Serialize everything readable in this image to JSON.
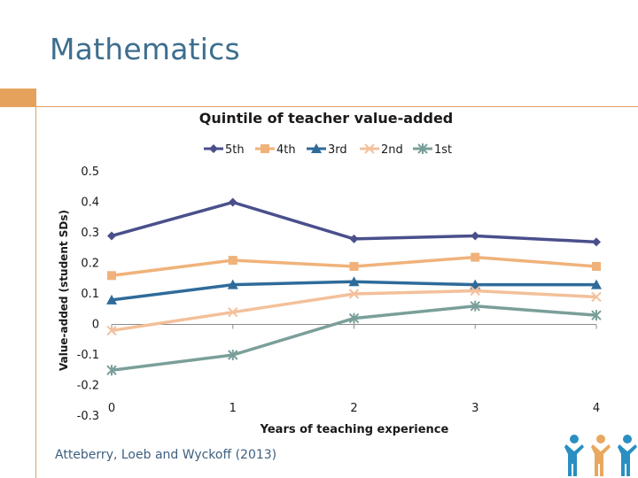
{
  "slide": {
    "title": "Mathematics",
    "source": "Atteberry, Loeb and Wyckoff (2013)"
  },
  "icons": {
    "logo": "people-group-logo"
  },
  "colors": {
    "title": "#3d6e8e",
    "accent": "#e5a25c"
  },
  "chart_data": {
    "type": "line",
    "title": "Quintile of teacher value-added",
    "xlabel": "Years of teaching experience",
    "ylabel": "Value-added (student SDs)",
    "x": [
      0,
      1,
      2,
      3,
      4
    ],
    "xticks": [
      "0",
      "1",
      "2",
      "3",
      "4"
    ],
    "yticks": [
      "-0.3",
      "-0.2",
      "-0.1",
      "0",
      "0.1",
      "0.2",
      "0.3",
      "0.4",
      "0.5"
    ],
    "ylim": [
      -0.3,
      0.5
    ],
    "grid": false,
    "legend_position": "top",
    "series": [
      {
        "name": "5th",
        "marker": "diamond",
        "color": "#4a4f8c",
        "values": [
          0.29,
          0.4,
          0.28,
          0.29,
          0.27
        ]
      },
      {
        "name": "4th",
        "marker": "square",
        "color": "#f0b27a",
        "values": [
          0.16,
          0.21,
          0.19,
          0.22,
          0.19
        ]
      },
      {
        "name": "3rd",
        "marker": "triangle",
        "color": "#2f6b9a",
        "values": [
          0.08,
          0.13,
          0.14,
          0.13,
          0.13
        ]
      },
      {
        "name": "2nd",
        "marker": "x",
        "color": "#f3c09a",
        "values": [
          -0.02,
          0.04,
          0.1,
          0.11,
          0.09
        ]
      },
      {
        "name": "1st",
        "marker": "star",
        "color": "#7a9f9a",
        "values": [
          -0.15,
          -0.1,
          0.02,
          0.06,
          0.03
        ]
      }
    ]
  }
}
